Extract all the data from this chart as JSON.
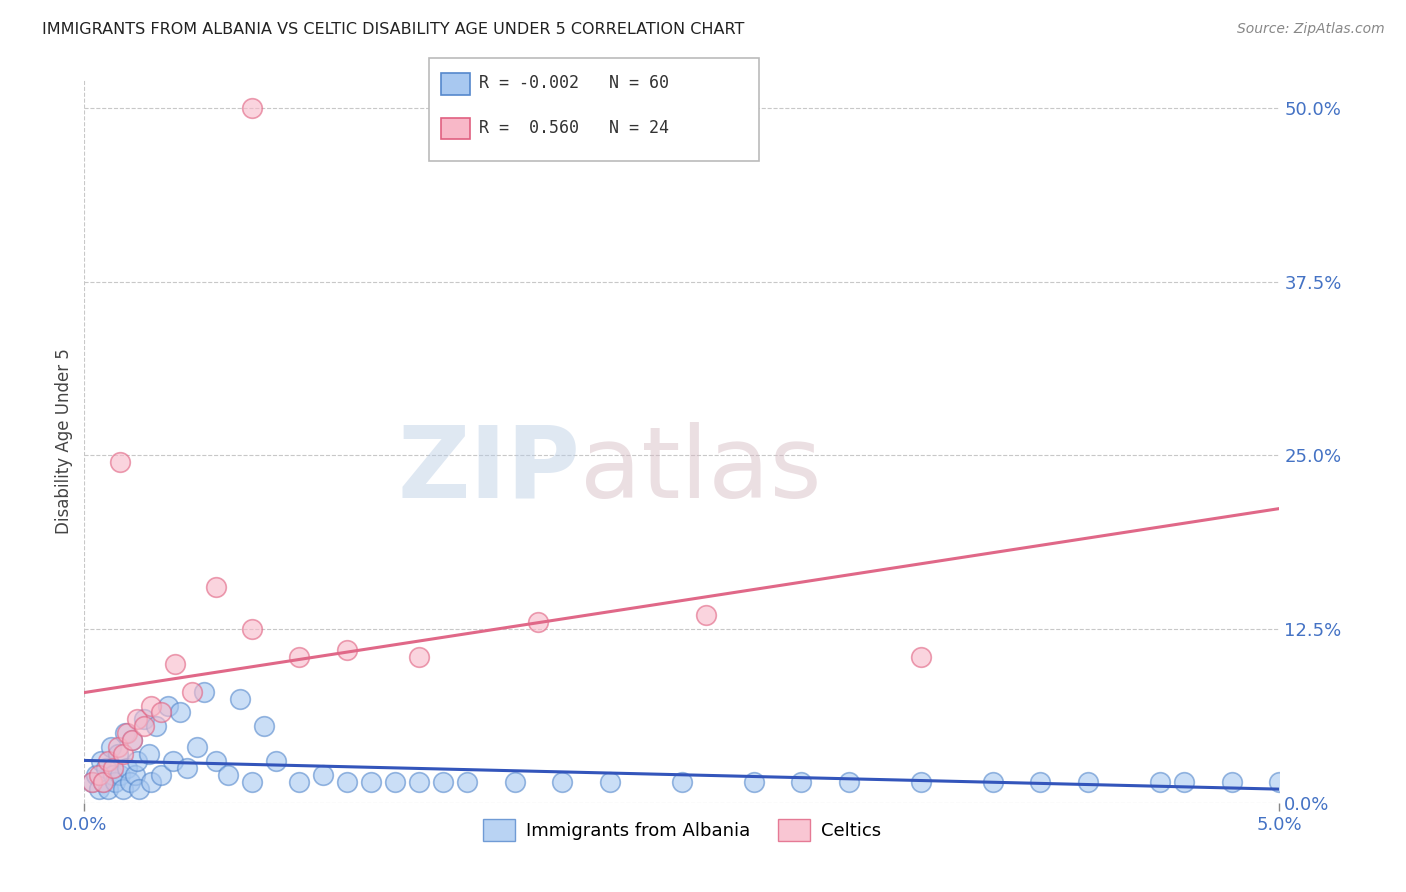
{
  "title": "IMMIGRANTS FROM ALBANIA VS CELTIC DISABILITY AGE UNDER 5 CORRELATION CHART",
  "source": "Source: ZipAtlas.com",
  "ylabel": "Disability Age Under 5",
  "xlim": [
    0.0,
    5.0
  ],
  "ylim": [
    0.0,
    52.0
  ],
  "ytick_vals": [
    0.0,
    12.5,
    25.0,
    37.5,
    50.0
  ],
  "xtick_vals": [
    0.0,
    5.0
  ],
  "legend_r1": "R = -0.002",
  "legend_n1": "N = 60",
  "legend_r2": "R =  0.560",
  "legend_n2": "N = 24",
  "color_albania_fill": "#A8C8F0",
  "color_albania_edge": "#5588CC",
  "color_celtics_fill": "#F8B8C8",
  "color_celtics_edge": "#E06080",
  "color_albania_line": "#3355BB",
  "color_celtics_line": "#E06888",
  "albania_x": [
    0.03,
    0.05,
    0.06,
    0.07,
    0.08,
    0.09,
    0.1,
    0.11,
    0.12,
    0.13,
    0.14,
    0.15,
    0.16,
    0.17,
    0.18,
    0.19,
    0.2,
    0.21,
    0.22,
    0.23,
    0.25,
    0.27,
    0.28,
    0.3,
    0.32,
    0.35,
    0.37,
    0.4,
    0.43,
    0.47,
    0.5,
    0.55,
    0.6,
    0.65,
    0.7,
    0.75,
    0.8,
    0.9,
    1.0,
    1.1,
    1.2,
    1.3,
    1.4,
    1.5,
    1.6,
    1.8,
    2.0,
    2.2,
    2.5,
    2.8,
    3.0,
    3.2,
    3.5,
    3.8,
    4.0,
    4.2,
    4.5,
    4.6,
    4.8,
    5.0
  ],
  "albania_y": [
    1.5,
    2.0,
    1.0,
    3.0,
    1.5,
    2.5,
    1.0,
    4.0,
    2.0,
    1.5,
    3.5,
    2.0,
    1.0,
    5.0,
    2.5,
    1.5,
    4.5,
    2.0,
    3.0,
    1.0,
    6.0,
    3.5,
    1.5,
    5.5,
    2.0,
    7.0,
    3.0,
    6.5,
    2.5,
    4.0,
    8.0,
    3.0,
    2.0,
    7.5,
    1.5,
    5.5,
    3.0,
    1.5,
    2.0,
    1.5,
    1.5,
    1.5,
    1.5,
    1.5,
    1.5,
    1.5,
    1.5,
    1.5,
    1.5,
    1.5,
    1.5,
    1.5,
    1.5,
    1.5,
    1.5,
    1.5,
    1.5,
    1.5,
    1.5,
    1.5
  ],
  "celtics_x": [
    0.03,
    0.06,
    0.08,
    0.1,
    0.12,
    0.14,
    0.16,
    0.18,
    0.2,
    0.22,
    0.25,
    0.28,
    0.32,
    0.38,
    0.45,
    0.55,
    0.7,
    0.9,
    1.1,
    1.4,
    1.9,
    2.6,
    3.5,
    0.15
  ],
  "celtics_y": [
    1.5,
    2.0,
    1.5,
    3.0,
    2.5,
    4.0,
    3.5,
    5.0,
    4.5,
    6.0,
    5.5,
    7.0,
    6.5,
    10.0,
    8.0,
    15.5,
    12.5,
    10.5,
    11.0,
    10.5,
    13.0,
    13.5,
    10.5,
    24.5
  ],
  "celtic_outlier_x": 0.7,
  "celtic_outlier_y": 50.0,
  "watermark_zip": "ZIP",
  "watermark_atlas": "atlas"
}
